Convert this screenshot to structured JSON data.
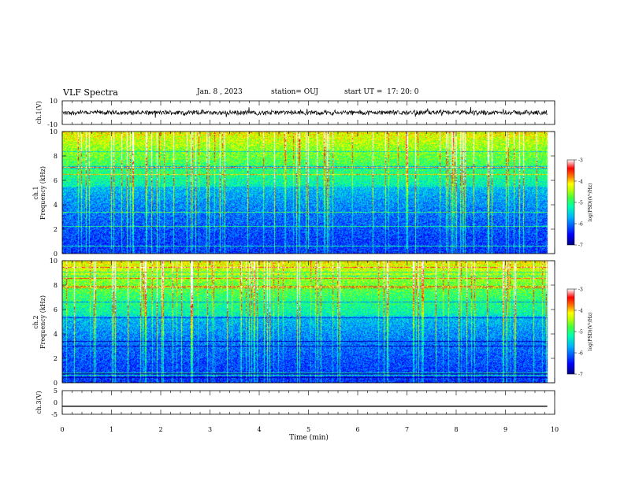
{
  "header": {
    "title": "VLF Spectra",
    "date": "Jan. 8 , 2023",
    "station": "station= OUJ",
    "start": "start UT =  17: 20: 0"
  },
  "chart_data": [
    {
      "type": "line",
      "panel": "waveform-ch1",
      "ylabel": "ch.1(V)",
      "ylim": [
        -10,
        10
      ],
      "yticks": [
        "10",
        "-10"
      ],
      "xlim": [
        0,
        10
      ],
      "description_level": 0
    },
    {
      "type": "heatmap",
      "panel": "spectrogram-ch1",
      "ylabel": "ch.1\nFrequency (kHz)",
      "ylabel_top": "ch.1",
      "ylabel_bottom": "Frequency (kHz)",
      "ylim": [
        0,
        10
      ],
      "yticks": [
        "0",
        "2",
        "4",
        "6",
        "8",
        "10"
      ],
      "xlim": [
        0,
        10
      ],
      "data_end_min": 9.85,
      "colorbar": {
        "range": [
          -7,
          -3
        ],
        "ticks": [
          "-3",
          "-4",
          "-5",
          "-6",
          "-7"
        ],
        "label": "log(PSD)(V²/Hz)",
        "colormap": [
          "#000080",
          "#0000ff",
          "#00b0ff",
          "#00ffb0",
          "#40ff40",
          "#c0ff00",
          "#ffff00",
          "#ff8000",
          "#ff0000",
          "#ffffff"
        ]
      }
    },
    {
      "type": "heatmap",
      "panel": "spectrogram-ch2",
      "ylabel": "ch.2\nFrequency (kHz)",
      "ylabel_top": "ch.2",
      "ylabel_bottom": "Frequency (kHz)",
      "ylim": [
        0,
        10
      ],
      "yticks": [
        "0",
        "2",
        "4",
        "6",
        "8",
        "10"
      ],
      "xlim": [
        0,
        10
      ],
      "data_end_min": 9.85,
      "colorbar": {
        "range": [
          -7,
          -3
        ],
        "ticks": [
          "-3",
          "-4",
          "-5",
          "-6",
          "-7"
        ],
        "label": "log(PSD)(V²/Hz)"
      }
    },
    {
      "type": "line",
      "panel": "waveform-ch3",
      "ylabel": "ch.3(V)",
      "ylim": [
        -5,
        5
      ],
      "yticks": [
        "5",
        "0",
        "-5"
      ],
      "xlim": [
        0,
        10
      ],
      "x": [
        0,
        9.85
      ],
      "y": [
        -1.6,
        -1.6
      ]
    }
  ],
  "xaxis": {
    "label": "Time (min)",
    "ticks": [
      "0",
      "1",
      "2",
      "3",
      "4",
      "5",
      "6",
      "7",
      "8",
      "9",
      "10"
    ]
  }
}
